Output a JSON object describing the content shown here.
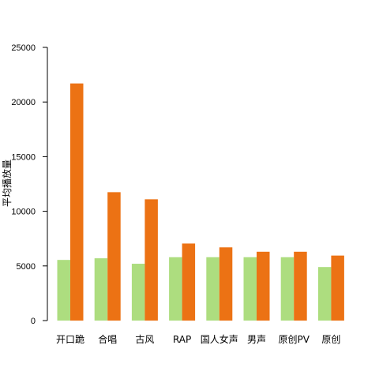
{
  "chart_data": {
    "type": "bar",
    "title": "",
    "xlabel": "",
    "ylabel": "平均播放量",
    "categories": [
      "开口跪",
      "合唱",
      "古风",
      "RAP",
      "国人女声",
      "男声",
      "原创PV",
      "原创"
    ],
    "series": [
      {
        "color": "#addd7f",
        "values": [
          5550,
          5700,
          5200,
          5800,
          5800,
          5800,
          5800,
          4900
        ]
      },
      {
        "color": "#ec7214",
        "values": [
          21700,
          11750,
          11100,
          7050,
          6700,
          6300,
          6300,
          5950
        ]
      }
    ],
    "ylim": [
      0,
      25000
    ],
    "yticks": [
      0,
      5000,
      10000,
      15000,
      20000,
      25000
    ],
    "grid": false,
    "legend": "none"
  }
}
